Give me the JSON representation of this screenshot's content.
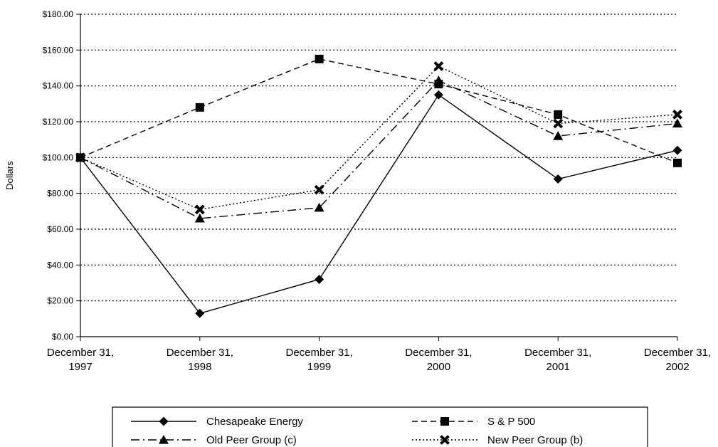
{
  "chart_data": {
    "type": "line",
    "title": "",
    "xlabel": "",
    "ylabel": "Dollars",
    "ylim": [
      0,
      180
    ],
    "y_step": 20,
    "y_tick_labels": [
      "$0.00",
      "$20.00",
      "$40.00",
      "$60.00",
      "$80.00",
      "$100.00",
      "$120.00",
      "$140.00",
      "$160.00",
      "$180.00"
    ],
    "categories": [
      [
        "December 31,",
        "1997"
      ],
      [
        "December 31,",
        "1998"
      ],
      [
        "December 31,",
        "1999"
      ],
      [
        "December 31,",
        "2000"
      ],
      [
        "December 31,",
        "2001"
      ],
      [
        "December 31,",
        "2002"
      ]
    ],
    "grid": "horizontal-dotted",
    "legend_position": "bottom",
    "series": [
      {
        "name": "Chesapeake Energy",
        "values": [
          100,
          13,
          32,
          135,
          88,
          104
        ],
        "marker": "diamond",
        "dash": "solid"
      },
      {
        "name": "S & P 500",
        "values": [
          100,
          128,
          155,
          141,
          124,
          97
        ],
        "marker": "square",
        "dash": "dashed"
      },
      {
        "name": "Old Peer Group (c)",
        "values": [
          100,
          66,
          72,
          143,
          112,
          119
        ],
        "marker": "triangle",
        "dash": "dashdot"
      },
      {
        "name": "New Peer Group (b)",
        "values": [
          100,
          71,
          82,
          151,
          119,
          124
        ],
        "marker": "x",
        "dash": "dotted"
      }
    ],
    "colors": {
      "line": "#000000",
      "grid": "#000000",
      "background": "#ffffff"
    }
  }
}
